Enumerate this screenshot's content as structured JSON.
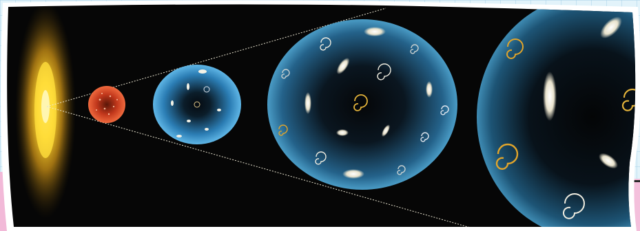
{
  "scene": {
    "subject": "expanding-universe-illustration",
    "colors": {
      "space": "#060606",
      "paper_border": "#ffffff",
      "big_bang_core": "#ffe14a",
      "big_bang_glow": "#e0a01a",
      "early_fireball": "#e24a2a",
      "bubble_blue": "#3b9ad0",
      "cone_line": "#e9e4d0",
      "galaxy_gold": "#e2a52a",
      "galaxy_white": "#f2efe2"
    },
    "icons": [
      "big-bang-glow-icon",
      "fireball-sphere-icon",
      "universe-bubble-icon",
      "spiral-galaxy-icon",
      "elliptical-galaxy-icon"
    ]
  }
}
